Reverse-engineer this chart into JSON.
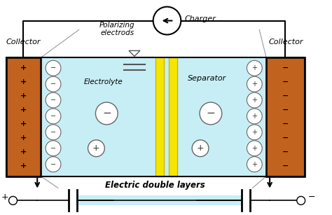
{
  "fig_width": 4.74,
  "fig_height": 3.07,
  "dpi": 100,
  "bg_color": "#ffffff",
  "collector_color": "#c1621f",
  "collector_edge": "#1a0a00",
  "electrolyte_color": "#c8eef5",
  "separator_color": "#f5e600",
  "separator_edge": "#c8b800",
  "circle_face": "#ffffff",
  "circle_edge": "#666666",
  "wire_color": "#000000",
  "label_charger": "Charger",
  "label_collector_left": "Collector",
  "label_collector_right": "Collector",
  "label_polarizing": "Polarizing\nelectrods",
  "label_electrolyte": "Electrolyte",
  "label_separator": "Separator",
  "label_edl": "Electric double layers"
}
